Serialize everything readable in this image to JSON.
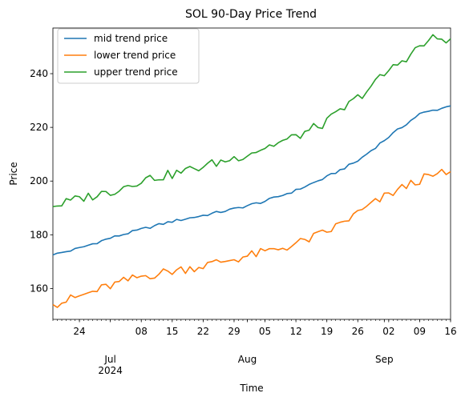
{
  "chart_data": {
    "type": "line",
    "title": "SOL 90-Day Price Trend",
    "xlabel": "Time",
    "ylabel": "Price",
    "x_start": "2024-06-18",
    "x_end": "2024-09-16",
    "ylim": [
      148.5,
      257
    ],
    "yticks": [
      160,
      180,
      200,
      220,
      240
    ],
    "xticks_major": [
      {
        "date": "2024-06-24",
        "label": "24"
      },
      {
        "date": "2024-07-01",
        "label": "Jul\n2024"
      },
      {
        "date": "2024-07-08",
        "label": "08"
      },
      {
        "date": "2024-07-15",
        "label": "15"
      },
      {
        "date": "2024-07-22",
        "label": "22"
      },
      {
        "date": "2024-07-29",
        "label": "29"
      },
      {
        "date": "2024-08-01",
        "label": "Aug"
      },
      {
        "date": "2024-08-05",
        "label": "05"
      },
      {
        "date": "2024-08-12",
        "label": "12"
      },
      {
        "date": "2024-08-19",
        "label": "19"
      },
      {
        "date": "2024-08-26",
        "label": "26"
      },
      {
        "date": "2024-09-01",
        "label": "Sep"
      },
      {
        "date": "2024-09-02",
        "label": "02"
      },
      {
        "date": "2024-09-09",
        "label": "09"
      },
      {
        "date": "2024-09-16",
        "label": "16"
      }
    ],
    "grid": false,
    "legend_position": "top-left",
    "series": [
      {
        "name": "mid trend price",
        "color": "#1f77b4",
        "keypoints": [
          [
            "2024-06-18",
            172.5
          ],
          [
            "2024-06-24",
            175.0
          ],
          [
            "2024-07-01",
            178.8
          ],
          [
            "2024-07-08",
            182.0
          ],
          [
            "2024-07-15",
            185.0
          ],
          [
            "2024-07-22",
            187.2
          ],
          [
            "2024-07-29",
            189.6
          ],
          [
            "2024-08-05",
            192.5
          ],
          [
            "2024-08-12",
            196.5
          ],
          [
            "2024-08-19",
            201.5
          ],
          [
            "2024-08-26",
            207.5
          ],
          [
            "2024-09-02",
            216.5
          ],
          [
            "2024-09-09",
            225.0
          ],
          [
            "2024-09-16",
            228.0
          ]
        ]
      },
      {
        "name": "lower trend price",
        "color": "#ff7f0e",
        "keypoints": [
          [
            "2024-06-18",
            154.0
          ],
          [
            "2024-06-24",
            157.0
          ],
          [
            "2024-07-01",
            161.0
          ],
          [
            "2024-07-08",
            164.5
          ],
          [
            "2024-07-15",
            166.5
          ],
          [
            "2024-07-22",
            168.5
          ],
          [
            "2024-07-29",
            171.0
          ],
          [
            "2024-08-05",
            173.5
          ],
          [
            "2024-08-12",
            176.5
          ],
          [
            "2024-08-19",
            181.0
          ],
          [
            "2024-08-26",
            188.0
          ],
          [
            "2024-09-02",
            195.0
          ],
          [
            "2024-09-09",
            200.5
          ],
          [
            "2024-09-16",
            203.5
          ]
        ]
      },
      {
        "name": "upper trend price",
        "color": "#2ca02c",
        "keypoints": [
          [
            "2024-06-18",
            190.5
          ],
          [
            "2024-06-24",
            193.5
          ],
          [
            "2024-07-01",
            196.0
          ],
          [
            "2024-07-08",
            200.5
          ],
          [
            "2024-07-15",
            202.5
          ],
          [
            "2024-07-22",
            205.5
          ],
          [
            "2024-07-29",
            208.5
          ],
          [
            "2024-08-05",
            212.5
          ],
          [
            "2024-08-12",
            216.5
          ],
          [
            "2024-08-19",
            222.0
          ],
          [
            "2024-08-26",
            231.0
          ],
          [
            "2024-09-02",
            241.0
          ],
          [
            "2024-09-09",
            250.0
          ],
          [
            "2024-09-12",
            253.0
          ],
          [
            "2024-09-16",
            253.0
          ]
        ]
      }
    ]
  }
}
